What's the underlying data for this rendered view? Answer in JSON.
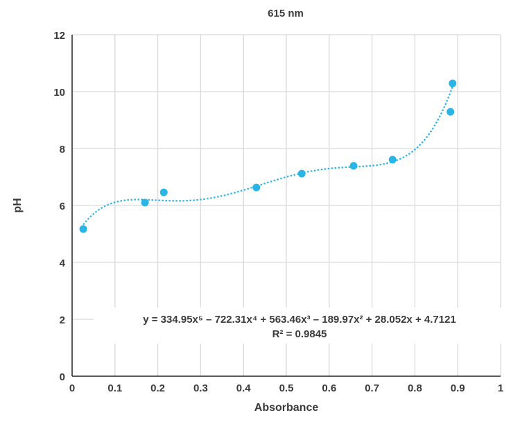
{
  "chart_data": {
    "type": "scatter",
    "title": "615 nm",
    "xlabel": "Absorbance",
    "ylabel": "pH",
    "xlim": [
      0,
      1
    ],
    "ylim": [
      0,
      12
    ],
    "xticks": [
      "0",
      "0.1",
      "0.2",
      "0.3",
      "0.4",
      "0.5",
      "0.6",
      "0.7",
      "0.8",
      "0.9",
      "1"
    ],
    "yticks": [
      "0",
      "2",
      "4",
      "6",
      "8",
      "10",
      "12"
    ],
    "grid": true,
    "series": [
      {
        "name": "615 nm",
        "color": "#2bb5e6",
        "points": [
          [
            0.026,
            5.17
          ],
          [
            0.17,
            6.1
          ],
          [
            0.214,
            6.46
          ],
          [
            0.43,
            6.63
          ],
          [
            0.536,
            7.12
          ],
          [
            0.657,
            7.39
          ],
          [
            0.748,
            7.61
          ],
          [
            0.883,
            9.29
          ],
          [
            0.888,
            10.29
          ]
        ]
      }
    ],
    "trendline": {
      "type": "polynomial",
      "coefficients": [
        334.95,
        -722.31,
        563.46,
        -189.97,
        28.052,
        4.7121
      ],
      "range": [
        0.026,
        0.888
      ],
      "equation_text": "y = 334.95x⁵ – 722.31x⁴ + 563.46x³ – 189.97x² + 28.052x + 4.7121",
      "r2_text": "R² = 0.9845"
    }
  }
}
